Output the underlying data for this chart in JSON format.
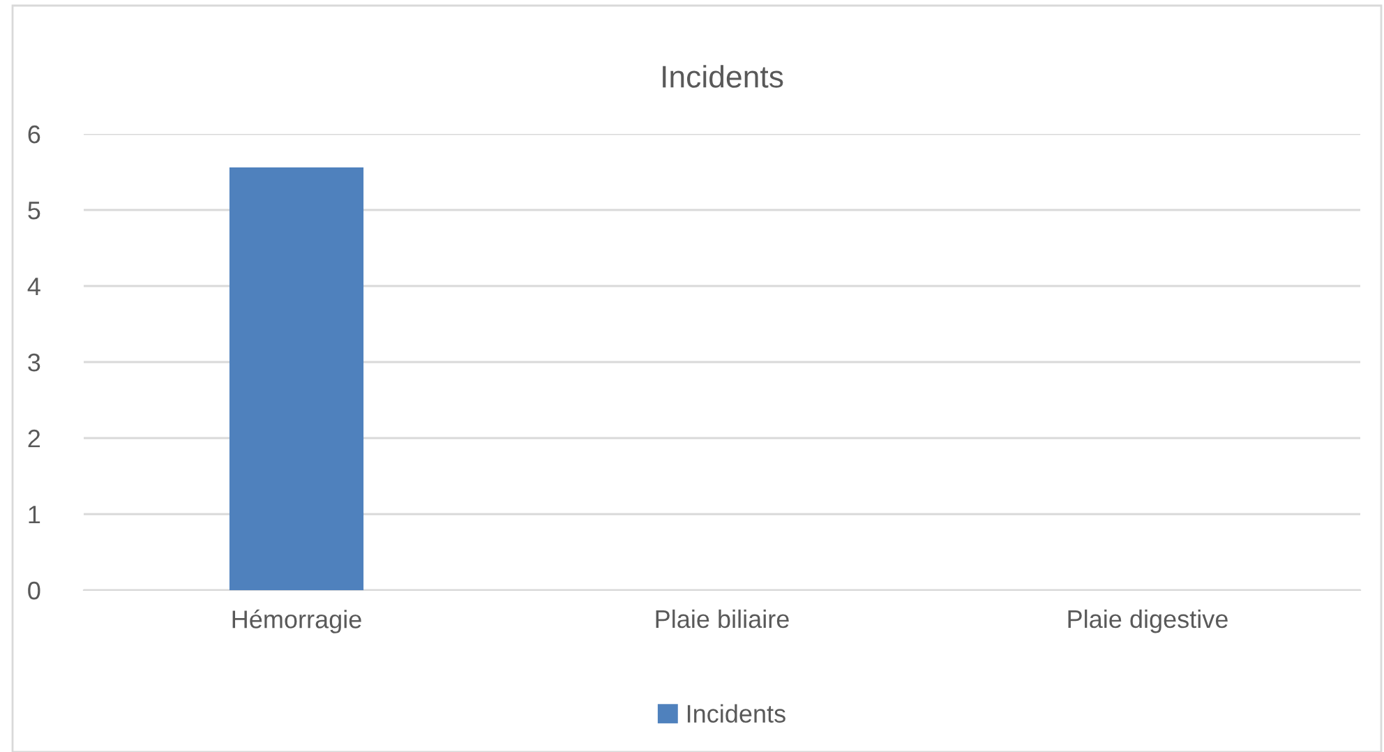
{
  "chart_data": {
    "type": "bar",
    "title": "Incidents",
    "categories": [
      "Hémorragie",
      "Plaie biliaire",
      "Plaie digestive"
    ],
    "series": [
      {
        "name": "Incidents",
        "color": "#4f81bd",
        "values": [
          5.56,
          0,
          0
        ]
      }
    ],
    "ylim": [
      0,
      6
    ],
    "yticks": [
      0,
      1,
      2,
      3,
      4,
      5,
      6
    ],
    "grid": "y",
    "legend": "bottom"
  }
}
